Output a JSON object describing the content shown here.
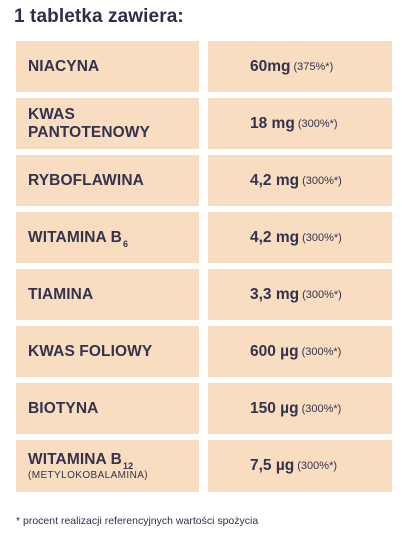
{
  "heading": "1 tabletka zawiera:",
  "rows": [
    {
      "name": "NIACYNA",
      "name_sub": "",
      "note": "",
      "amount": "60mg",
      "percent": "(375%*)"
    },
    {
      "name": "KWAS PANTOTENOWY",
      "name_sub": "",
      "note": "",
      "amount": "18 mg",
      "percent": "(300%*)"
    },
    {
      "name": "RYBOFLAWINA",
      "name_sub": "",
      "note": "",
      "amount": "4,2 mg",
      "percent": "(300%*)"
    },
    {
      "name": "WITAMINA B",
      "name_sub": "6",
      "note": "",
      "amount": "4,2 mg",
      "percent": "(300%*)"
    },
    {
      "name": "TIAMINA",
      "name_sub": "",
      "note": "",
      "amount": "3,3 mg",
      "percent": "(300%*)"
    },
    {
      "name": "KWAS FOLIOWY",
      "name_sub": "",
      "note": "",
      "amount": "600 µg",
      "percent": "(300%*)"
    },
    {
      "name": "BIOTYNA",
      "name_sub": "",
      "note": "",
      "amount": "150 µg",
      "percent": "(300%*)"
    },
    {
      "name": "WITAMINA B",
      "name_sub": "12",
      "note": "(METYLOKOBALAMINA)",
      "amount": "7,5 µg",
      "percent": "(300%*)"
    }
  ],
  "footnote": "* procent realizacji referencyjnych wartości spożycia",
  "colors": {
    "cell_bg": "#f8ddc0",
    "text": "#33324f"
  }
}
